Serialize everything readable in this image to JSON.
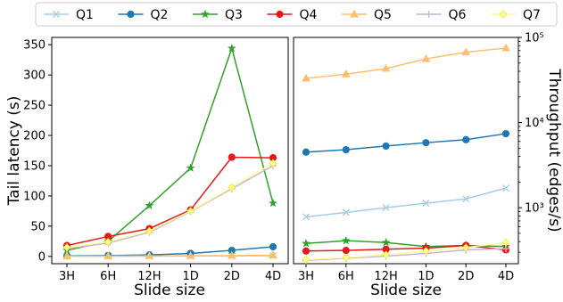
{
  "chart_data": [
    {
      "type": "line",
      "categories": [
        "3H",
        "6H",
        "12H",
        "1D",
        "2D",
        "4D"
      ],
      "xlabel": "Slide size",
      "ylabel": "Tail latency (s)",
      "ylim": [
        -12,
        362
      ],
      "yticks": [
        "0",
        "50",
        "100",
        "150",
        "200",
        "250",
        "300",
        "350"
      ],
      "ytick_values": [
        0,
        50,
        100,
        150,
        200,
        250,
        300,
        350
      ],
      "yscale": "linear",
      "series": [
        {
          "name": "Q1",
          "values": [
            0.3,
            0.4,
            0.5,
            0.7,
            0.9,
            1.2
          ]
        },
        {
          "name": "Q2",
          "values": [
            1,
            1.5,
            2.5,
            5,
            10,
            16
          ]
        },
        {
          "name": "Q3",
          "values": [
            10,
            25,
            84,
            146,
            344,
            88
          ]
        },
        {
          "name": "Q4",
          "values": [
            18,
            33,
            46,
            77,
            164,
            163
          ]
        },
        {
          "name": "Q5",
          "values": [
            0.5,
            0.6,
            0.8,
            1,
            1.4,
            2
          ]
        },
        {
          "name": "Q6",
          "values": [
            13,
            22,
            40,
            74,
            112,
            150
          ]
        },
        {
          "name": "Q7",
          "values": [
            15,
            24,
            42,
            75,
            114,
            154
          ]
        }
      ]
    },
    {
      "type": "line",
      "categories": [
        "3H",
        "6H",
        "12H",
        "1D",
        "2D",
        "4D"
      ],
      "xlabel": "Slide size",
      "ylabel": "Throughput (edges/s)",
      "ylim": [
        220,
        100000
      ],
      "yscale": "log",
      "yticks": [
        "10³",
        "10⁴",
        "10⁵"
      ],
      "ytick_values": [
        1000,
        10000,
        100000
      ],
      "series": [
        {
          "name": "Q1",
          "values": [
            780,
            880,
            1000,
            1130,
            1270,
            1700
          ]
        },
        {
          "name": "Q2",
          "values": [
            4500,
            4800,
            5300,
            5800,
            6300,
            7400
          ]
        },
        {
          "name": "Q3",
          "values": [
            380,
            410,
            390,
            350,
            360,
            350
          ]
        },
        {
          "name": "Q4",
          "values": [
            310,
            315,
            325,
            335,
            360,
            320
          ]
        },
        {
          "name": "Q5",
          "values": [
            33000,
            37000,
            43000,
            56000,
            67000,
            75000
          ]
        },
        {
          "name": "Q6",
          "values": [
            240,
            255,
            270,
            290,
            320,
            330
          ]
        },
        {
          "name": "Q7",
          "values": [
            245,
            260,
            280,
            310,
            340,
            390
          ]
        }
      ]
    }
  ],
  "legend": {
    "placement": "top",
    "entries": [
      {
        "name": "Q1",
        "color": "#a6cee3",
        "marker": "x"
      },
      {
        "name": "Q2",
        "color": "#1f78b4",
        "marker": "circle"
      },
      {
        "name": "Q3",
        "color": "#33a02c",
        "marker": "star"
      },
      {
        "name": "Q4",
        "color": "#e31a1c",
        "marker": "circle"
      },
      {
        "name": "Q5",
        "color": "#fdbf6f",
        "marker": "triangle"
      },
      {
        "name": "Q6",
        "color": "#cab2d6",
        "marker": "plus"
      },
      {
        "name": "Q7",
        "color": "#ffff99",
        "marker": "diamond"
      }
    ]
  }
}
